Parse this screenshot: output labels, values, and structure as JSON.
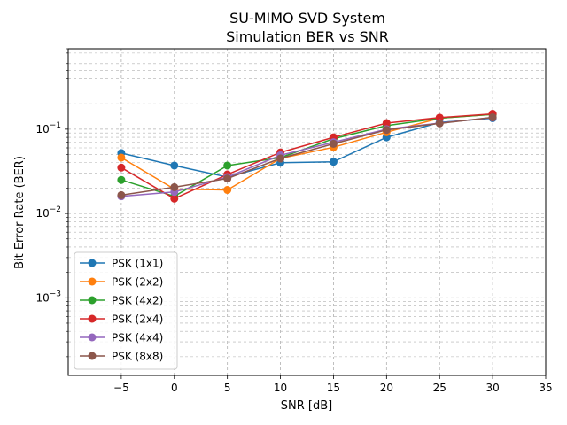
{
  "chart_data": {
    "type": "line",
    "title": "SU-MIMO SVD System\nSimulation BER vs SNR",
    "xlabel": "SNR [dB]",
    "ylabel": "Bit Error Rate (BER)",
    "xlim": [
      -10,
      35
    ],
    "ylim": [
      0.00012,
      0.9
    ],
    "yscale": "log",
    "xticks": [
      -5,
      0,
      5,
      10,
      15,
      20,
      25,
      30,
      35
    ],
    "xtick_labels": [
      "−5",
      "0",
      "5",
      "10",
      "15",
      "20",
      "25",
      "30",
      "35"
    ],
    "yticks_major": [
      0.001,
      0.01,
      0.1
    ],
    "grid": true,
    "legend_position": "lower-left",
    "x": [
      -5,
      0,
      5,
      10,
      15,
      20,
      25,
      30
    ],
    "series": [
      {
        "name": "PSK (1x1)",
        "color": "#1f77b4",
        "values": [
          0.052,
          0.037,
          0.027,
          0.04,
          0.041,
          0.08,
          0.12,
          0.135
        ]
      },
      {
        "name": "PSK (2x2)",
        "color": "#ff7f0e",
        "values": [
          0.046,
          0.0195,
          0.019,
          0.045,
          0.061,
          0.092,
          0.135,
          0.15
        ]
      },
      {
        "name": "PSK (4x2)",
        "color": "#2ca02c",
        "values": [
          0.025,
          0.016,
          0.037,
          0.046,
          0.077,
          0.11,
          0.135,
          0.15
        ]
      },
      {
        "name": "PSK (2x4)",
        "color": "#d62728",
        "values": [
          0.035,
          0.015,
          0.029,
          0.053,
          0.08,
          0.118,
          0.137,
          0.152
        ]
      },
      {
        "name": "PSK (4x4)",
        "color": "#9467bd",
        "values": [
          0.016,
          0.018,
          0.027,
          0.049,
          0.07,
          0.1,
          0.118,
          0.137
        ]
      },
      {
        "name": "PSK (8x8)",
        "color": "#8c564b",
        "values": [
          0.0165,
          0.0205,
          0.026,
          0.045,
          0.067,
          0.098,
          0.117,
          0.138
        ]
      }
    ]
  }
}
